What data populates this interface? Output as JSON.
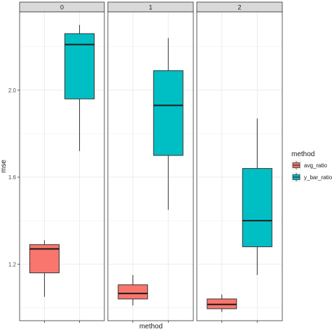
{
  "chart_data": {
    "type": "boxplot",
    "facet_variable": "",
    "facets": [
      "0",
      "1",
      "2"
    ],
    "x_categories": [
      "avg_ratio",
      "y_bar_ratio"
    ],
    "xlabel": "method",
    "ylabel": "mse",
    "ylim": [
      0.94,
      2.36
    ],
    "y_ticks": [
      1.2,
      1.6,
      2.0
    ],
    "y_tick_labels": [
      "1.2",
      "1.6",
      "2.0"
    ],
    "grid": true,
    "legend": {
      "title": "method",
      "position": "right",
      "entries": [
        {
          "name": "avg_ratio",
          "color": "#F8766D"
        },
        {
          "name": "y_bar_ratio",
          "color": "#00BFC4"
        }
      ]
    },
    "boxes": [
      {
        "facet": "0",
        "method": "avg_ratio",
        "min": 1.05,
        "q1": 1.16,
        "median": 1.27,
        "q3": 1.29,
        "max": 1.31
      },
      {
        "facet": "0",
        "method": "y_bar_ratio",
        "min": 1.72,
        "q1": 1.96,
        "median": 2.21,
        "q3": 2.26,
        "max": 2.3
      },
      {
        "facet": "1",
        "method": "avg_ratio",
        "min": 1.01,
        "q1": 1.04,
        "median": 1.065,
        "q3": 1.105,
        "max": 1.15
      },
      {
        "facet": "1",
        "method": "y_bar_ratio",
        "min": 1.45,
        "q1": 1.7,
        "median": 1.93,
        "q3": 2.09,
        "max": 2.24
      },
      {
        "facet": "2",
        "method": "avg_ratio",
        "min": 0.98,
        "q1": 0.995,
        "median": 1.015,
        "q3": 1.04,
        "max": 1.06
      },
      {
        "facet": "2",
        "method": "y_bar_ratio",
        "min": 1.15,
        "q1": 1.28,
        "median": 1.4,
        "q3": 1.64,
        "max": 1.87
      }
    ]
  }
}
